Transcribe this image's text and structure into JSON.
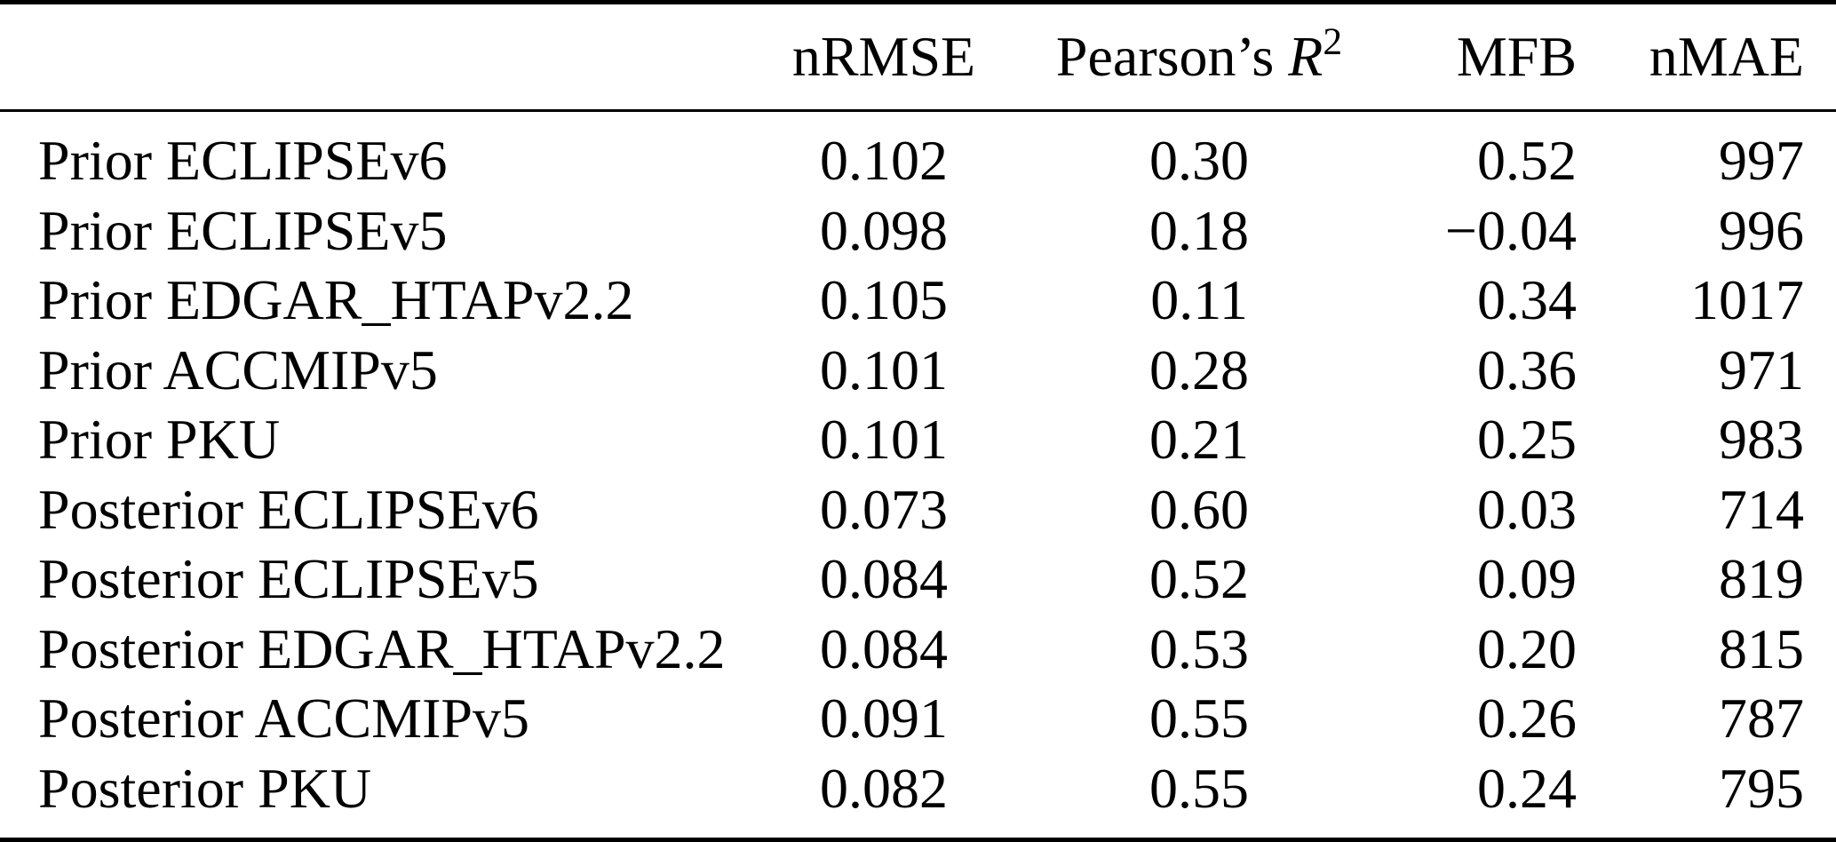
{
  "table": {
    "header": {
      "label": "",
      "nrmse": "nRMSE",
      "pearson_prefix": "Pearson’s ",
      "pearson_symbol": "R",
      "pearson_exponent": "2",
      "mfb": "MFB",
      "nmae": "nMAE"
    },
    "rows": [
      {
        "label": "Prior ECLIPSEv6",
        "nrmse": "0.102",
        "pearson": "0.30",
        "mfb": "0.52",
        "nmae": "997"
      },
      {
        "label": "Prior ECLIPSEv5",
        "nrmse": "0.098",
        "pearson": "0.18",
        "mfb": "−0.04",
        "nmae": "996"
      },
      {
        "label": "Prior EDGAR_HTAPv2.2",
        "nrmse": "0.105",
        "pearson": "0.11",
        "mfb": "0.34",
        "nmae": "1017"
      },
      {
        "label": "Prior ACCMIPv5",
        "nrmse": "0.101",
        "pearson": "0.28",
        "mfb": "0.36",
        "nmae": "971"
      },
      {
        "label": "Prior PKU",
        "nrmse": "0.101",
        "pearson": "0.21",
        "mfb": "0.25",
        "nmae": "983"
      },
      {
        "label": "Posterior ECLIPSEv6",
        "nrmse": "0.073",
        "pearson": "0.60",
        "mfb": "0.03",
        "nmae": "714"
      },
      {
        "label": "Posterior ECLIPSEv5",
        "nrmse": "0.084",
        "pearson": "0.52",
        "mfb": "0.09",
        "nmae": "819"
      },
      {
        "label": "Posterior EDGAR_HTAPv2.2",
        "nrmse": "0.084",
        "pearson": "0.53",
        "mfb": "0.20",
        "nmae": "815"
      },
      {
        "label": "Posterior ACCMIPv5",
        "nrmse": "0.091",
        "pearson": "0.55",
        "mfb": "0.26",
        "nmae": "787"
      },
      {
        "label": "Posterior PKU",
        "nrmse": "0.082",
        "pearson": "0.55",
        "mfb": "0.24",
        "nmae": "795"
      }
    ],
    "text_color": "#000000",
    "rule_color": "#000000",
    "background_color": "#ffffff"
  },
  "chart_data": {
    "type": "table",
    "title": "",
    "columns": [
      "",
      "nRMSE",
      "Pearson's R2",
      "MFB",
      "nMAE"
    ],
    "rows": [
      [
        "Prior ECLIPSEv6",
        0.102,
        0.3,
        0.52,
        997
      ],
      [
        "Prior ECLIPSEv5",
        0.098,
        0.18,
        -0.04,
        996
      ],
      [
        "Prior EDGAR_HTAPv2.2",
        0.105,
        0.11,
        0.34,
        1017
      ],
      [
        "Prior ACCMIPv5",
        0.101,
        0.28,
        0.36,
        971
      ],
      [
        "Prior PKU",
        0.101,
        0.21,
        0.25,
        983
      ],
      [
        "Posterior ECLIPSEv6",
        0.073,
        0.6,
        0.03,
        714
      ],
      [
        "Posterior ECLIPSEv5",
        0.084,
        0.52,
        0.09,
        819
      ],
      [
        "Posterior EDGAR_HTAPv2.2",
        0.084,
        0.53,
        0.2,
        815
      ],
      [
        "Posterior ACCMIPv5",
        0.091,
        0.55,
        0.26,
        787
      ],
      [
        "Posterior PKU",
        0.082,
        0.55,
        0.24,
        795
      ]
    ]
  }
}
